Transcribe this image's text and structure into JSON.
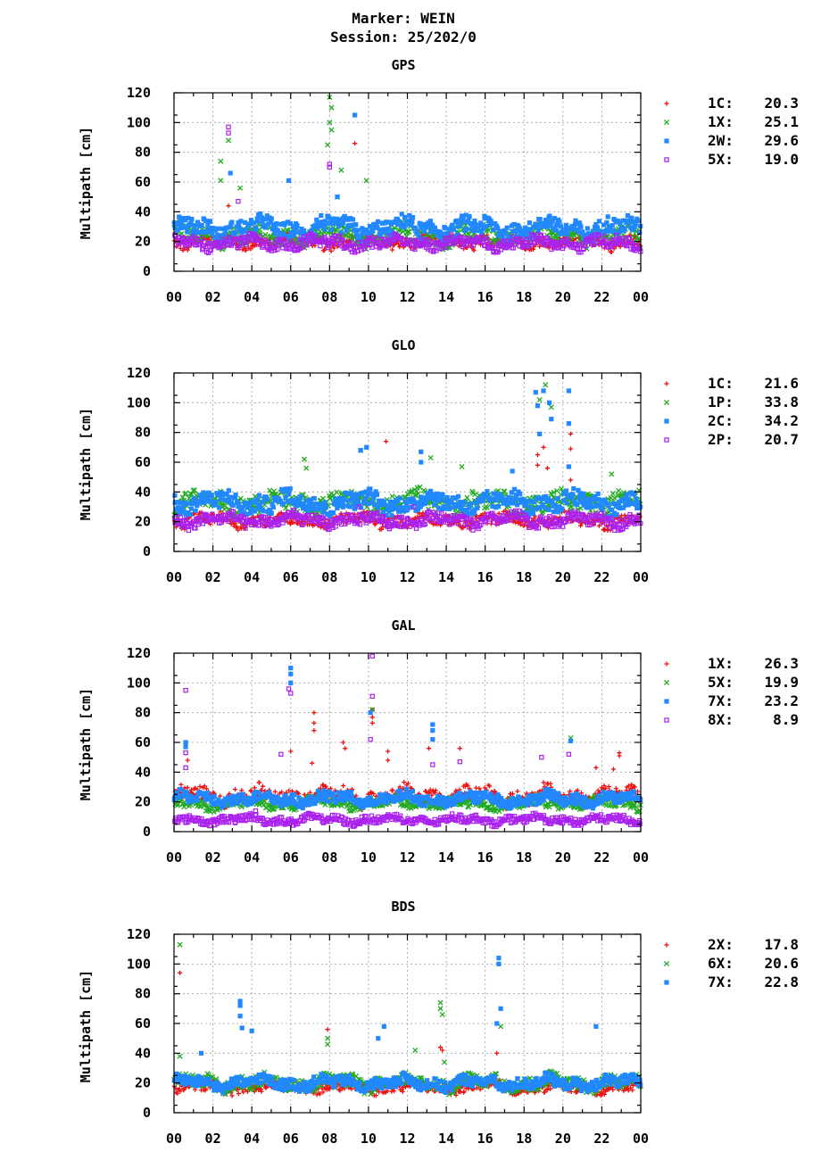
{
  "header": {
    "marker": "Marker: WEIN",
    "session": "Session: 25/202/0"
  },
  "colors": {
    "red": "#ee1111",
    "green": "#22aa22",
    "blue": "#2288ff",
    "purple": "#aa22ee"
  },
  "chart_data": [
    {
      "type": "scatter",
      "title": "GPS",
      "ylabel": "Multipath [cm]",
      "ylim": [
        0,
        120
      ],
      "xlim": [
        0,
        24
      ],
      "yticks": [
        "0",
        "20",
        "40",
        "60",
        "80",
        "100",
        "120"
      ],
      "xticks": [
        "00",
        "02",
        "04",
        "06",
        "08",
        "10",
        "12",
        "14",
        "16",
        "18",
        "20",
        "22",
        "00"
      ],
      "grid": true,
      "legend_position": "right",
      "series": [
        {
          "name": "1C",
          "value_label": "20.3",
          "marker": "plus",
          "color": "#ee1111",
          "base": 20,
          "spread": 6,
          "outliers": [
            [
              2.8,
              44
            ],
            [
              9.3,
              86
            ]
          ]
        },
        {
          "name": "1X",
          "value_label": "25.1",
          "marker": "cross",
          "color": "#22aa22",
          "base": 24,
          "spread": 9,
          "outliers": [
            [
              2.4,
              74
            ],
            [
              2.4,
              61
            ],
            [
              2.8,
              88
            ],
            [
              3.4,
              56
            ],
            [
              7.9,
              85
            ],
            [
              8.0,
              100
            ],
            [
              8.0,
              117
            ],
            [
              8.1,
              110
            ],
            [
              8.1,
              95
            ],
            [
              8.6,
              68
            ],
            [
              9.9,
              61
            ],
            [
              8.4,
              50
            ]
          ]
        },
        {
          "name": "2W",
          "value_label": "29.6",
          "marker": "square",
          "color": "#2288ff",
          "base": 29,
          "spread": 9,
          "outliers": [
            [
              2.9,
              66
            ],
            [
              5.9,
              61
            ],
            [
              9.3,
              105
            ],
            [
              8.4,
              50
            ]
          ]
        },
        {
          "name": "5X",
          "value_label": "19.0",
          "marker": "opensquare",
          "color": "#aa22ee",
          "base": 19,
          "spread": 6,
          "outliers": [
            [
              2.8,
              97
            ],
            [
              2.8,
              93
            ],
            [
              8.0,
              72
            ],
            [
              8.0,
              70
            ],
            [
              3.3,
              47
            ]
          ]
        }
      ]
    },
    {
      "type": "scatter",
      "title": "GLO",
      "ylabel": "Multipath [cm]",
      "ylim": [
        0,
        120
      ],
      "xlim": [
        0,
        24
      ],
      "yticks": [
        "0",
        "20",
        "40",
        "60",
        "80",
        "100",
        "120"
      ],
      "xticks": [
        "00",
        "02",
        "04",
        "06",
        "08",
        "10",
        "12",
        "14",
        "16",
        "18",
        "20",
        "22",
        "00"
      ],
      "grid": true,
      "legend_position": "right",
      "series": [
        {
          "name": "1C",
          "value_label": "21.6",
          "marker": "plus",
          "color": "#ee1111",
          "base": 21,
          "spread": 6,
          "outliers": [
            [
              10.9,
              74
            ],
            [
              18.7,
              65
            ],
            [
              18.7,
              58
            ],
            [
              19.0,
              70
            ],
            [
              19.2,
              56
            ],
            [
              20.4,
              79
            ],
            [
              20.4,
              69
            ],
            [
              20.4,
              48
            ]
          ]
        },
        {
          "name": "1P",
          "value_label": "33.8",
          "marker": "cross",
          "color": "#22aa22",
          "base": 33,
          "spread": 9,
          "outliers": [
            [
              6.7,
              62
            ],
            [
              6.8,
              56
            ],
            [
              9.6,
              68
            ],
            [
              13.2,
              63
            ],
            [
              14.8,
              57
            ],
            [
              18.8,
              102
            ],
            [
              19.1,
              112
            ],
            [
              19.4,
              97
            ],
            [
              22.5,
              52
            ]
          ]
        },
        {
          "name": "2C",
          "value_label": "34.2",
          "marker": "square",
          "color": "#2288ff",
          "base": 33,
          "spread": 9,
          "outliers": [
            [
              9.6,
              68
            ],
            [
              9.9,
              70
            ],
            [
              12.7,
              67
            ],
            [
              12.7,
              60
            ],
            [
              17.4,
              54
            ],
            [
              18.6,
              107
            ],
            [
              18.7,
              98
            ],
            [
              18.8,
              79
            ],
            [
              19.0,
              108
            ],
            [
              19.3,
              100
            ],
            [
              19.4,
              89
            ],
            [
              20.3,
              108
            ],
            [
              20.3,
              86
            ],
            [
              20.3,
              57
            ]
          ]
        },
        {
          "name": "2P",
          "value_label": "20.7",
          "marker": "opensquare",
          "color": "#aa22ee",
          "base": 21,
          "spread": 6,
          "outliers": [
            [
              12.3,
              30
            ],
            [
              9.5,
              30
            ]
          ]
        }
      ]
    },
    {
      "type": "scatter",
      "title": "GAL",
      "ylabel": "Multipath [cm]",
      "ylim": [
        0,
        120
      ],
      "xlim": [
        0,
        24
      ],
      "yticks": [
        "0",
        "20",
        "40",
        "60",
        "80",
        "100",
        "120"
      ],
      "xticks": [
        "00",
        "02",
        "04",
        "06",
        "08",
        "10",
        "12",
        "14",
        "16",
        "18",
        "20",
        "22",
        "00"
      ],
      "grid": true,
      "legend_position": "right",
      "series": [
        {
          "name": "1X",
          "value_label": "26.3",
          "marker": "plus",
          "color": "#ee1111",
          "base": 24,
          "spread": 8,
          "outliers": [
            [
              0.7,
              48
            ],
            [
              6.0,
              54
            ],
            [
              7.2,
              80
            ],
            [
              7.2,
              73
            ],
            [
              7.2,
              68
            ],
            [
              7.1,
              46
            ],
            [
              8.7,
              60
            ],
            [
              8.8,
              56
            ],
            [
              10.2,
              82
            ],
            [
              10.2,
              77
            ],
            [
              10.2,
              73
            ],
            [
              11.0,
              54
            ],
            [
              11.0,
              48
            ],
            [
              13.1,
              56
            ],
            [
              14.7,
              56
            ],
            [
              21.7,
              43
            ],
            [
              22.9,
              53
            ],
            [
              22.9,
              51
            ],
            [
              22.6,
              42
            ]
          ]
        },
        {
          "name": "5X",
          "value_label": "19.9",
          "marker": "cross",
          "color": "#22aa22",
          "base": 19,
          "spread": 5,
          "outliers": [
            [
              10.2,
              82
            ],
            [
              20.4,
              63
            ]
          ]
        },
        {
          "name": "7X",
          "value_label": "23.2",
          "marker": "square",
          "color": "#2288ff",
          "base": 22,
          "spread": 6,
          "outliers": [
            [
              0.6,
              60
            ],
            [
              0.6,
              57
            ],
            [
              6.0,
              110
            ],
            [
              6.0,
              106
            ],
            [
              6.0,
              100
            ],
            [
              10.1,
              80
            ],
            [
              13.3,
              72
            ],
            [
              13.3,
              68
            ],
            [
              13.3,
              62
            ],
            [
              20.4,
              61
            ]
          ]
        },
        {
          "name": "8X",
          "value_label": "8.9",
          "marker": "opensquare",
          "color": "#aa22ee",
          "base": 8,
          "spread": 4,
          "outliers": [
            [
              0.6,
              95
            ],
            [
              0.6,
              53
            ],
            [
              0.6,
              43
            ],
            [
              5.5,
              52
            ],
            [
              5.9,
              96
            ],
            [
              6.0,
              93
            ],
            [
              10.2,
              118
            ],
            [
              10.2,
              91
            ],
            [
              10.1,
              62
            ],
            [
              13.3,
              45
            ],
            [
              14.7,
              47
            ],
            [
              18.9,
              50
            ],
            [
              20.3,
              52
            ],
            [
              4.2,
              14
            ]
          ]
        }
      ]
    },
    {
      "type": "scatter",
      "title": "BDS",
      "ylabel": "Multipath [cm]",
      "ylim": [
        0,
        120
      ],
      "xlim": [
        0,
        24
      ],
      "yticks": [
        "0",
        "20",
        "40",
        "60",
        "80",
        "100",
        "120"
      ],
      "xticks": [
        "00",
        "02",
        "04",
        "06",
        "08",
        "10",
        "12",
        "14",
        "16",
        "18",
        "20",
        "22",
        "00"
      ],
      "grid": true,
      "legend_position": "right",
      "series": [
        {
          "name": "2X",
          "value_label": "17.8",
          "marker": "plus",
          "color": "#ee1111",
          "base": 17,
          "spread": 5,
          "outliers": [
            [
              0.3,
              94
            ],
            [
              7.9,
              56
            ],
            [
              13.7,
              44
            ],
            [
              13.8,
              42
            ],
            [
              16.6,
              40
            ]
          ]
        },
        {
          "name": "6X",
          "value_label": "20.6",
          "marker": "cross",
          "color": "#22aa22",
          "base": 20,
          "spread": 7,
          "outliers": [
            [
              0.3,
              113
            ],
            [
              0.3,
              38
            ],
            [
              7.9,
              50
            ],
            [
              7.9,
              46
            ],
            [
              12.4,
              42
            ],
            [
              13.7,
              74
            ],
            [
              13.7,
              70
            ],
            [
              13.8,
              66
            ],
            [
              13.9,
              34
            ],
            [
              16.8,
              58
            ]
          ]
        },
        {
          "name": "7X",
          "value_label": "22.8",
          "marker": "square",
          "color": "#2288ff",
          "base": 20,
          "spread": 6,
          "outliers": [
            [
              3.4,
              75
            ],
            [
              3.4,
              72
            ],
            [
              3.4,
              65
            ],
            [
              3.5,
              57
            ],
            [
              4.0,
              55
            ],
            [
              10.5,
              50
            ],
            [
              10.8,
              58
            ],
            [
              16.7,
              104
            ],
            [
              16.7,
              100
            ],
            [
              16.8,
              70
            ],
            [
              16.6,
              60
            ],
            [
              21.7,
              58
            ],
            [
              1.4,
              40
            ]
          ]
        }
      ]
    }
  ]
}
